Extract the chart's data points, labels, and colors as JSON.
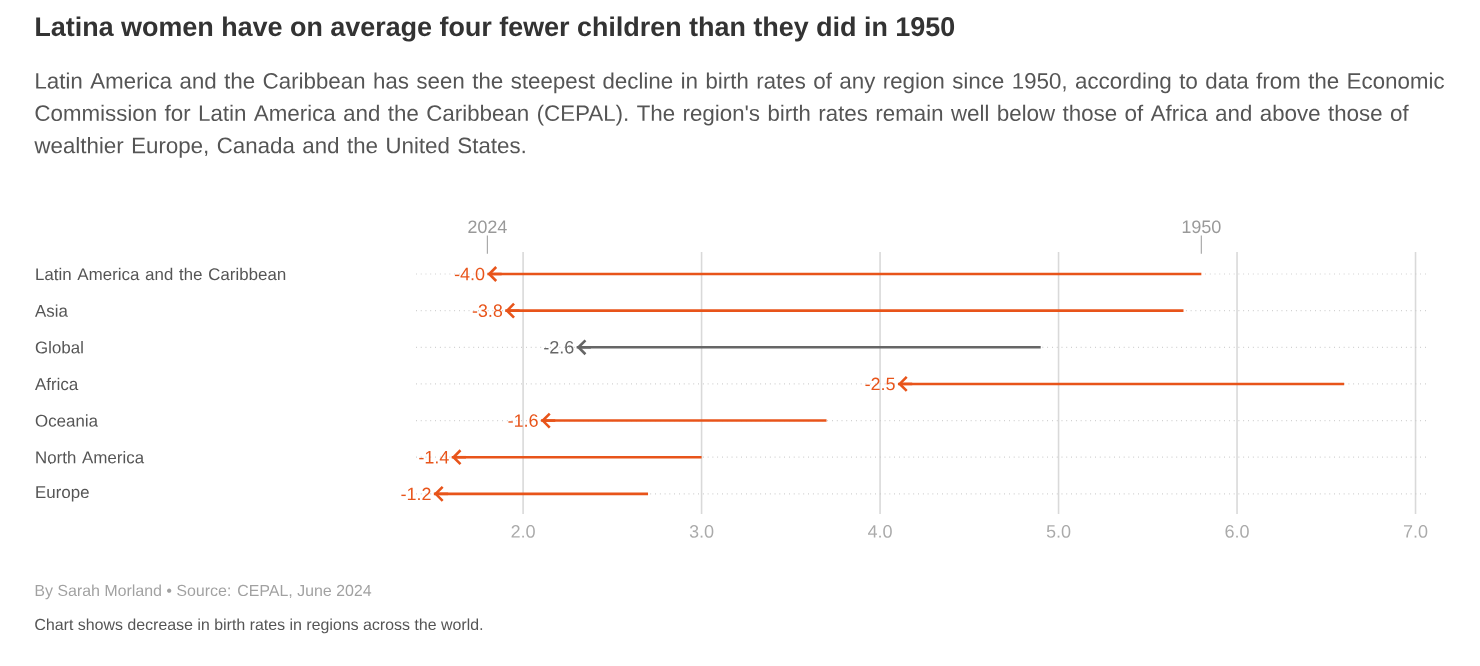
{
  "chart_data": {
    "type": "bar",
    "orientation": "horizontal",
    "title": "Latina women have on average four fewer children than they did in 1950",
    "subtitle": "Latin America and the Caribbean has seen the steepest decline in birth rates of any region since 1950, according to data from the Economic Commission for Latin America and the Caribbean (CEPAL). The region's birth rates remain well below those of Africa and above those of wealthier Europe, Canada and the United States.",
    "categories": [
      "Latin America and the Caribbean",
      "Asia",
      "Global",
      "Africa",
      "Oceania",
      "North America",
      "Europe"
    ],
    "base": [
      5.8,
      5.7,
      4.9,
      6.6,
      3.7,
      3.0,
      2.7
    ],
    "values": [
      -4.0,
      -3.8,
      -2.6,
      -2.5,
      -1.6,
      -1.4,
      -1.2
    ],
    "value_labels": [
      "-4.0",
      "-3.8",
      "-2.6",
      "-2.5",
      "-1.6",
      "-1.4",
      "-1.2"
    ],
    "colors": [
      "#e8541a",
      "#e8541a",
      "#666666",
      "#e8541a",
      "#e8541a",
      "#e8541a",
      "#e8541a"
    ],
    "xlim": [
      1.4,
      7.07
    ],
    "xticks": [
      {
        "value": 2,
        "label": "2.0"
      },
      {
        "value": 3,
        "label": "3.0"
      },
      {
        "value": 4,
        "label": "4.0"
      },
      {
        "value": 5,
        "label": "5.0"
      },
      {
        "value": 6,
        "label": "6.0"
      },
      {
        "value": 7,
        "label": "7.0"
      }
    ],
    "grid": true,
    "annotations": [
      "2024",
      "1950",
      "By Sarah Morland • Source: CEPAL, June 2024",
      "Chart shows decrease in birth rates in regions across the world."
    ]
  }
}
